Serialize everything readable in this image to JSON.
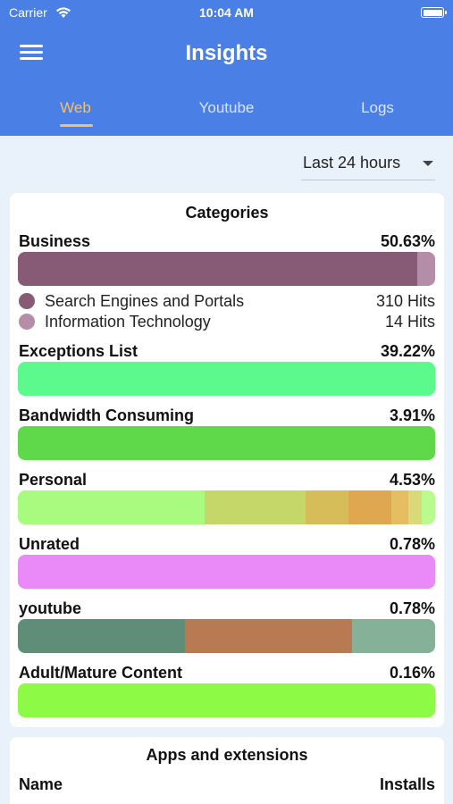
{
  "status_bar": {
    "carrier": "Carrier",
    "time": "10:04 AM"
  },
  "header": {
    "title": "Insights",
    "tabs": [
      {
        "label": "Web",
        "active": true
      },
      {
        "label": "Youtube",
        "active": false
      },
      {
        "label": "Logs",
        "active": false
      }
    ]
  },
  "range_select": {
    "value": "Last 24 hours"
  },
  "categories": {
    "title": "Categories",
    "items": [
      {
        "label": "Business",
        "percent": "50.63%",
        "segments": [
          {
            "color": "#875a76",
            "share": 0.957
          },
          {
            "color": "#b48ea8",
            "share": 0.043
          }
        ],
        "breakdown": [
          {
            "label": "Search Engines and Portals",
            "count": "310 Hits",
            "color": "#875a76"
          },
          {
            "label": "Information Technology",
            "count": "14 Hits",
            "color": "#b48ea8"
          }
        ]
      },
      {
        "label": "Exceptions List",
        "percent": "39.22%",
        "segments": [
          {
            "color": "#5cf98c",
            "share": 1
          }
        ]
      },
      {
        "label": "Bandwidth Consuming",
        "percent": "3.91%",
        "segments": [
          {
            "color": "#5fd84a",
            "share": 1
          }
        ]
      },
      {
        "label": "Personal",
        "percent": "4.53%",
        "segments": [
          {
            "color": "#a9fb80",
            "share": 0.448
          },
          {
            "color": "#c5d768",
            "share": 0.242
          },
          {
            "color": "#d7bd59",
            "share": 0.103
          },
          {
            "color": "#dfa750",
            "share": 0.103
          },
          {
            "color": "#e4be60",
            "share": 0.04
          },
          {
            "color": "#d9d97a",
            "share": 0.032
          },
          {
            "color": "#b9fb8f",
            "share": 0.032
          }
        ]
      },
      {
        "label": "Unrated",
        "percent": "0.78%",
        "segments": [
          {
            "color": "#ea8af9",
            "share": 1
          }
        ]
      },
      {
        "label": "youtube",
        "percent": "0.78%",
        "segments": [
          {
            "color": "#5f8d78",
            "share": 0.4
          },
          {
            "color": "#b77a52",
            "share": 0.4
          },
          {
            "color": "#84b197",
            "share": 0.2
          }
        ]
      },
      {
        "label": "Adult/Mature Content",
        "percent": "0.16%",
        "segments": [
          {
            "color": "#8dfa45",
            "share": 1
          }
        ]
      }
    ]
  },
  "apps": {
    "title": "Apps and extensions",
    "columns": {
      "name": "Name",
      "installs": "Installs"
    }
  },
  "colors": {
    "header": "#4a7fe6",
    "active_tab": "#f4c06b",
    "background": "#e9f1fb"
  }
}
